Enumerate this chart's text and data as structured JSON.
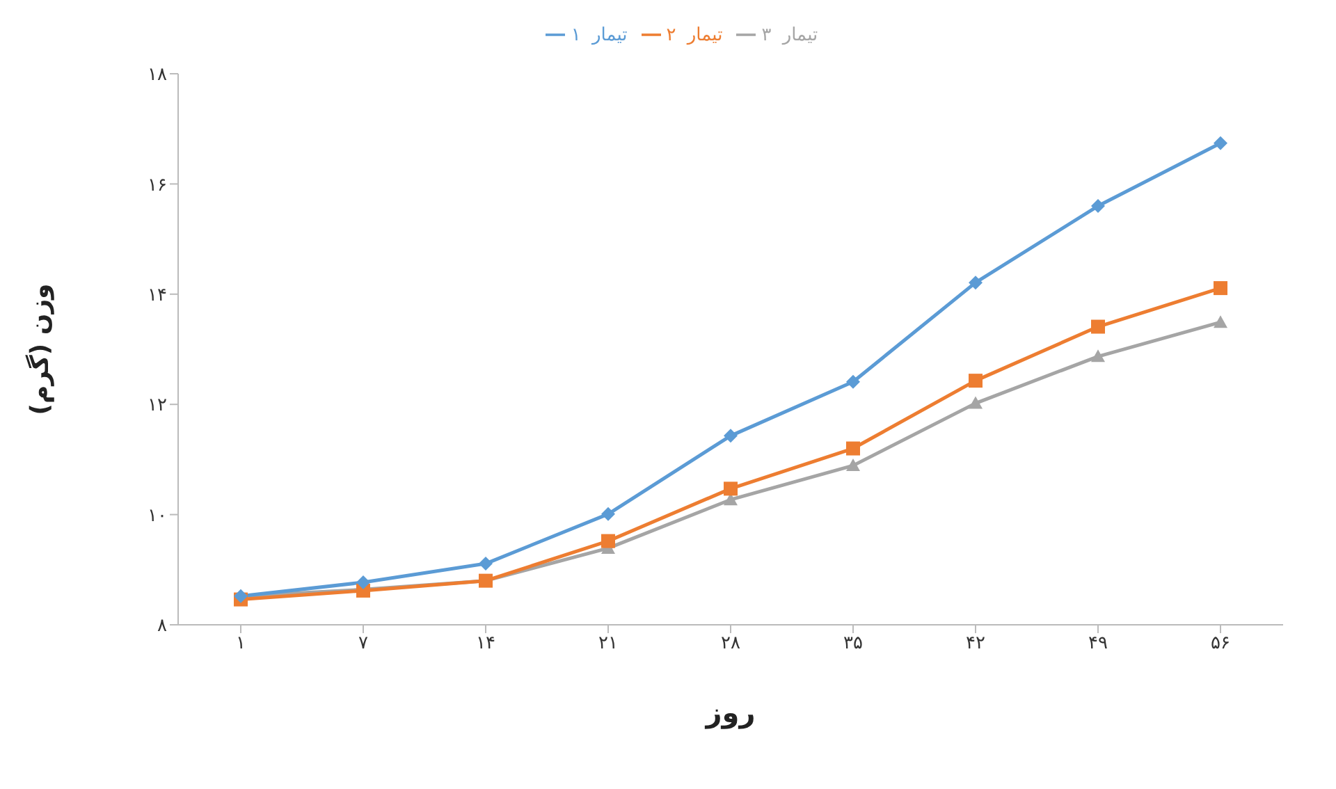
{
  "chart_data": {
    "type": "line",
    "xlabel": "روز",
    "ylabel": "وزن (گرم)",
    "categories": [
      "۱",
      "۷",
      "۱۴",
      "۲۱",
      "۲۸",
      "۳۵",
      "۴۲",
      "۴۹",
      "۵۶"
    ],
    "ylim": [
      8,
      18
    ],
    "yticks": [
      {
        "value": 8,
        "label": "۸"
      },
      {
        "value": 10,
        "label": "۱۰"
      },
      {
        "value": 12,
        "label": "۱۲"
      },
      {
        "value": 14,
        "label": "۱۴"
      },
      {
        "value": 16,
        "label": "۱۶"
      },
      {
        "value": 18,
        "label": "۱۸"
      }
    ],
    "series": [
      {
        "name": "تیمار ۱",
        "color": "#5b9bd5",
        "marker": "diamond",
        "values": [
          8.52,
          8.77,
          9.11,
          10.01,
          11.43,
          12.41,
          14.21,
          15.6,
          16.74
        ]
      },
      {
        "name": "تیمار ۲",
        "color": "#ed7d31",
        "marker": "square",
        "values": [
          8.46,
          8.62,
          8.8,
          9.52,
          10.47,
          11.2,
          12.43,
          13.41,
          14.11
        ]
      },
      {
        "name": "تیمار ۳",
        "color": "#a5a5a5",
        "marker": "triangle",
        "values": [
          8.52,
          8.64,
          8.8,
          9.39,
          10.27,
          10.89,
          12.02,
          12.87,
          13.49
        ]
      }
    ],
    "grid": false,
    "legend": "top",
    "line_style": "solid"
  }
}
